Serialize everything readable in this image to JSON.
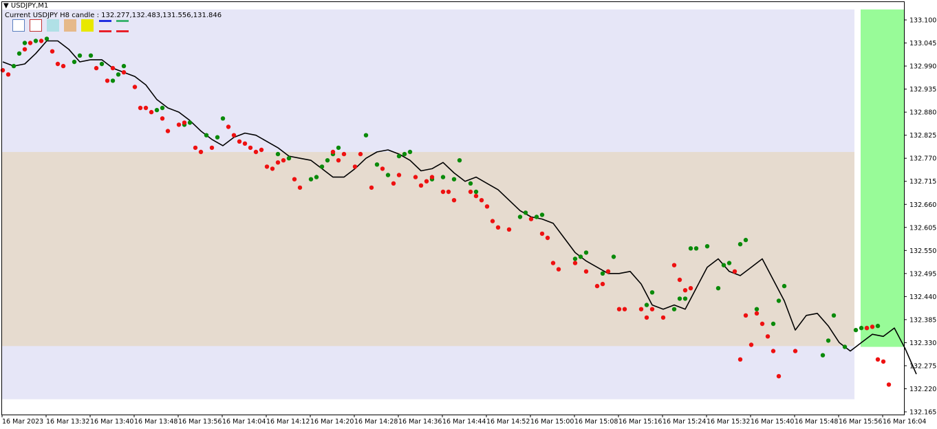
{
  "header": {
    "symbol": "USDJPY,M1",
    "candle_info": "Current USDJPY H8 candle : 132.277,132.483,131.556,131.846"
  },
  "legend": {
    "swatch_colors": [
      "#ffffff",
      "#ffffff",
      "#b0e0e6",
      "#e6b98a",
      "#e8e800"
    ],
    "swatch_borders": [
      "#5a7fbf",
      "#c03030",
      "#b0e0e6",
      "#e6b98a",
      "#e8e800"
    ],
    "line_colors_top": [
      "#1f2fe0",
      "#3cb371"
    ],
    "line_colors_bottom": [
      "#e8202a",
      "#e8202a"
    ]
  },
  "colors": {
    "zone_outer": "#e6e6f7",
    "zone_inner": "#e6dbcf",
    "zone_green": "#98fb98",
    "line": "#000000",
    "dot_up": "#0a8a0a",
    "dot_down": "#ee1111"
  },
  "chart_data": {
    "type": "line",
    "title": "",
    "xlabel": "",
    "ylabel": "",
    "ylim": [
      132.165,
      133.12
    ],
    "y_ticks": [
      "133.100",
      "133.045",
      "132.990",
      "132.935",
      "132.880",
      "132.825",
      "132.770",
      "132.715",
      "132.660",
      "132.605",
      "132.550",
      "132.495",
      "132.440",
      "132.385",
      "132.330",
      "132.275",
      "132.220",
      "132.165"
    ],
    "x_tick_labels": [
      "16 Mar 2023",
      "16 Mar 13:32",
      "16 Mar 13:40",
      "16 Mar 13:48",
      "16 Mar 13:56",
      "16 Mar 14:04",
      "16 Mar 14:12",
      "16 Mar 14:20",
      "16 Mar 14:28",
      "16 Mar 14:36",
      "16 Mar 14:44",
      "16 Mar 14:52",
      "16 Mar 15:00",
      "16 Mar 15:08",
      "16 Mar 15:16",
      "16 Mar 15:24",
      "16 Mar 15:32",
      "16 Mar 15:40",
      "16 Mar 15:48",
      "16 Mar 15:56",
      "16 Mar 16:04"
    ],
    "bars_total": 164,
    "zones": [
      {
        "name": "outer",
        "y_from": 132.195,
        "y_to": 133.125,
        "bar_from": 0,
        "bar_to": 155
      },
      {
        "name": "inner",
        "y_from": 132.322,
        "y_to": 132.785,
        "bar_from": 0,
        "bar_to": 155
      },
      {
        "name": "green",
        "y_from": 132.32,
        "y_to": 133.125,
        "bar_from": 156,
        "bar_to": 164
      }
    ],
    "series": [
      {
        "points": [
          [
            0,
            133.0
          ],
          [
            2,
            132.99
          ],
          [
            4,
            132.995
          ],
          [
            6,
            133.02
          ],
          [
            8,
            133.05
          ],
          [
            10,
            133.05
          ],
          [
            12,
            133.03
          ],
          [
            14,
            133.0
          ],
          [
            16,
            133.005
          ],
          [
            18,
            133.005
          ],
          [
            20,
            132.985
          ],
          [
            22,
            132.975
          ],
          [
            24,
            132.965
          ],
          [
            26,
            132.945
          ],
          [
            28,
            132.91
          ],
          [
            30,
            132.89
          ],
          [
            32,
            132.88
          ],
          [
            34,
            132.86
          ],
          [
            36,
            132.835
          ],
          [
            38,
            132.815
          ],
          [
            40,
            132.8
          ],
          [
            42,
            132.82
          ],
          [
            44,
            132.83
          ],
          [
            46,
            132.825
          ],
          [
            48,
            132.81
          ],
          [
            50,
            132.795
          ],
          [
            52,
            132.775
          ],
          [
            54,
            132.77
          ],
          [
            56,
            132.765
          ],
          [
            58,
            132.745
          ],
          [
            60,
            132.725
          ],
          [
            62,
            132.725
          ],
          [
            64,
            132.745
          ],
          [
            66,
            132.77
          ],
          [
            68,
            132.785
          ],
          [
            70,
            132.79
          ],
          [
            72,
            132.78
          ],
          [
            74,
            132.765
          ],
          [
            76,
            132.74
          ],
          [
            78,
            132.745
          ],
          [
            80,
            132.76
          ],
          [
            82,
            132.735
          ],
          [
            84,
            132.715
          ],
          [
            86,
            132.725
          ],
          [
            88,
            132.71
          ],
          [
            90,
            132.695
          ],
          [
            92,
            132.67
          ],
          [
            94,
            132.645
          ],
          [
            96,
            132.63
          ],
          [
            98,
            132.625
          ],
          [
            100,
            132.615
          ],
          [
            102,
            132.58
          ],
          [
            104,
            132.545
          ],
          [
            106,
            132.525
          ],
          [
            108,
            132.51
          ],
          [
            110,
            132.495
          ],
          [
            112,
            132.495
          ],
          [
            114,
            132.5
          ],
          [
            116,
            132.47
          ],
          [
            118,
            132.42
          ],
          [
            120,
            132.41
          ],
          [
            122,
            132.42
          ],
          [
            124,
            132.41
          ],
          [
            126,
            132.46
          ],
          [
            128,
            132.51
          ],
          [
            130,
            132.53
          ],
          [
            132,
            132.5
          ],
          [
            134,
            132.49
          ],
          [
            136,
            132.51
          ],
          [
            138,
            132.53
          ],
          [
            140,
            132.48
          ],
          [
            142,
            132.43
          ],
          [
            144,
            132.36
          ],
          [
            146,
            132.395
          ],
          [
            148,
            132.4
          ],
          [
            150,
            132.37
          ],
          [
            152,
            132.33
          ],
          [
            154,
            132.31
          ],
          [
            156,
            132.33
          ],
          [
            158,
            132.35
          ],
          [
            160,
            132.345
          ],
          [
            162,
            132.365
          ],
          [
            164,
            132.315
          ],
          [
            166,
            132.255
          ]
        ]
      }
    ],
    "markers_up": [
      [
        2,
        132.99
      ],
      [
        3,
        133.02
      ],
      [
        4,
        133.045
      ],
      [
        6,
        133.05
      ],
      [
        8,
        133.055
      ],
      [
        13,
        133.0
      ],
      [
        14,
        133.015
      ],
      [
        16,
        133.015
      ],
      [
        18,
        132.995
      ],
      [
        20,
        132.955
      ],
      [
        21,
        132.97
      ],
      [
        22,
        132.99
      ],
      [
        28,
        132.885
      ],
      [
        29,
        132.89
      ],
      [
        33,
        132.85
      ],
      [
        34,
        132.855
      ],
      [
        37,
        132.825
      ],
      [
        39,
        132.82
      ],
      [
        40,
        132.865
      ],
      [
        50,
        132.78
      ],
      [
        52,
        132.77
      ],
      [
        56,
        132.72
      ],
      [
        57,
        132.725
      ],
      [
        58,
        132.75
      ],
      [
        59,
        132.765
      ],
      [
        60,
        132.78
      ],
      [
        61,
        132.795
      ],
      [
        66,
        132.825
      ],
      [
        68,
        132.755
      ],
      [
        70,
        132.73
      ],
      [
        72,
        132.775
      ],
      [
        73,
        132.78
      ],
      [
        74,
        132.785
      ],
      [
        78,
        132.72
      ],
      [
        80,
        132.725
      ],
      [
        82,
        132.72
      ],
      [
        83,
        132.765
      ],
      [
        85,
        132.71
      ],
      [
        86,
        132.69
      ],
      [
        94,
        132.63
      ],
      [
        95,
        132.64
      ],
      [
        97,
        132.63
      ],
      [
        98,
        132.635
      ],
      [
        104,
        132.53
      ],
      [
        105,
        132.535
      ],
      [
        106,
        132.545
      ],
      [
        109,
        132.495
      ],
      [
        111,
        132.535
      ],
      [
        117,
        132.42
      ],
      [
        118,
        132.45
      ],
      [
        122,
        132.41
      ],
      [
        123,
        132.435
      ],
      [
        124,
        132.435
      ],
      [
        125,
        132.555
      ],
      [
        126,
        132.555
      ],
      [
        128,
        132.56
      ],
      [
        130,
        132.46
      ],
      [
        131,
        132.515
      ],
      [
        132,
        132.52
      ],
      [
        134,
        132.565
      ],
      [
        135,
        132.575
      ],
      [
        137,
        132.41
      ],
      [
        140,
        132.375
      ],
      [
        141,
        132.43
      ],
      [
        142,
        132.465
      ],
      [
        149,
        132.3
      ],
      [
        150,
        132.335
      ],
      [
        151,
        132.395
      ],
      [
        153,
        132.32
      ],
      [
        155,
        132.36
      ],
      [
        156,
        132.365
      ],
      [
        157,
        132.365
      ],
      [
        159,
        132.37
      ]
    ],
    "markers_down": [
      [
        0,
        132.98
      ],
      [
        1,
        132.97
      ],
      [
        4,
        133.03
      ],
      [
        5,
        133.045
      ],
      [
        7,
        133.05
      ],
      [
        9,
        133.025
      ],
      [
        10,
        132.995
      ],
      [
        11,
        132.99
      ],
      [
        17,
        132.985
      ],
      [
        19,
        132.955
      ],
      [
        20,
        132.985
      ],
      [
        22,
        132.975
      ],
      [
        24,
        132.94
      ],
      [
        25,
        132.89
      ],
      [
        26,
        132.89
      ],
      [
        27,
        132.88
      ],
      [
        29,
        132.865
      ],
      [
        30,
        132.835
      ],
      [
        32,
        132.85
      ],
      [
        33,
        132.855
      ],
      [
        35,
        132.795
      ],
      [
        36,
        132.785
      ],
      [
        38,
        132.795
      ],
      [
        41,
        132.845
      ],
      [
        42,
        132.825
      ],
      [
        43,
        132.81
      ],
      [
        44,
        132.805
      ],
      [
        45,
        132.795
      ],
      [
        46,
        132.785
      ],
      [
        47,
        132.79
      ],
      [
        48,
        132.75
      ],
      [
        49,
        132.745
      ],
      [
        50,
        132.76
      ],
      [
        51,
        132.765
      ],
      [
        53,
        132.72
      ],
      [
        54,
        132.7
      ],
      [
        60,
        132.785
      ],
      [
        61,
        132.765
      ],
      [
        62,
        132.78
      ],
      [
        64,
        132.75
      ],
      [
        65,
        132.78
      ],
      [
        67,
        132.7
      ],
      [
        69,
        132.745
      ],
      [
        71,
        132.71
      ],
      [
        72,
        132.73
      ],
      [
        75,
        132.725
      ],
      [
        76,
        132.705
      ],
      [
        77,
        132.715
      ],
      [
        78,
        132.725
      ],
      [
        80,
        132.69
      ],
      [
        81,
        132.69
      ],
      [
        82,
        132.67
      ],
      [
        85,
        132.69
      ],
      [
        86,
        132.68
      ],
      [
        87,
        132.67
      ],
      [
        88,
        132.655
      ],
      [
        89,
        132.62
      ],
      [
        90,
        132.605
      ],
      [
        92,
        132.6
      ],
      [
        96,
        132.625
      ],
      [
        98,
        132.59
      ],
      [
        99,
        132.58
      ],
      [
        100,
        132.52
      ],
      [
        101,
        132.505
      ],
      [
        104,
        132.52
      ],
      [
        106,
        132.5
      ],
      [
        108,
        132.465
      ],
      [
        109,
        132.47
      ],
      [
        110,
        132.5
      ],
      [
        112,
        132.41
      ],
      [
        113,
        132.41
      ],
      [
        116,
        132.41
      ],
      [
        117,
        132.39
      ],
      [
        118,
        132.41
      ],
      [
        120,
        132.39
      ],
      [
        122,
        132.515
      ],
      [
        123,
        132.48
      ],
      [
        124,
        132.455
      ],
      [
        125,
        132.46
      ],
      [
        133,
        132.5
      ],
      [
        134,
        132.29
      ],
      [
        135,
        132.395
      ],
      [
        136,
        132.325
      ],
      [
        137,
        132.4
      ],
      [
        138,
        132.375
      ],
      [
        139,
        132.345
      ],
      [
        140,
        132.31
      ],
      [
        141,
        132.25
      ],
      [
        144,
        132.31
      ],
      [
        157,
        132.365
      ],
      [
        158,
        132.368
      ],
      [
        159,
        132.29
      ],
      [
        160,
        132.285
      ],
      [
        161,
        132.23
      ]
    ]
  }
}
